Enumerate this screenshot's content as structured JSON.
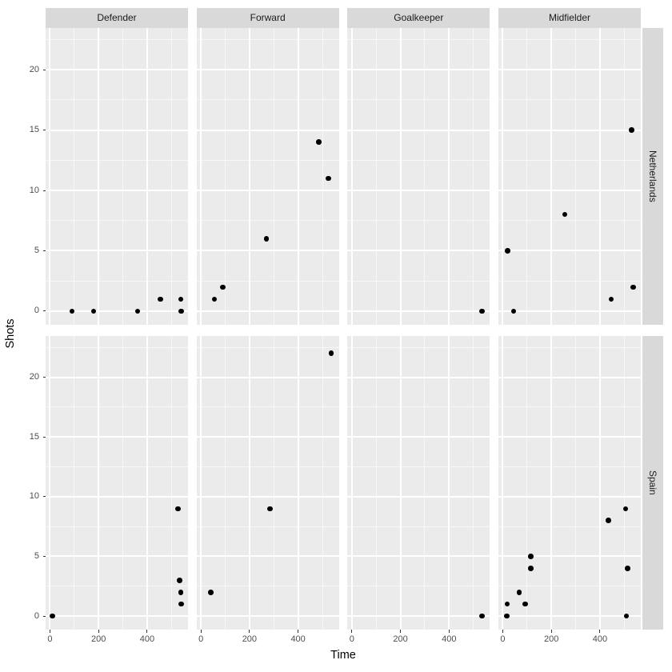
{
  "figure": {
    "colors": {
      "panel_bg": "#EBEBEB",
      "strip_bg": "#D9D9D9",
      "grid_major": "#FFFFFF",
      "grid_minor": "#F7F7F7",
      "point": "#000000",
      "tick_text": "#4D4D4D",
      "tick_mark": "#333333",
      "axis_title": "#000000"
    }
  },
  "chart_data": {
    "type": "scatter",
    "title": "",
    "xlabel": "Time",
    "ylabel": "Shots",
    "facet_cols": [
      "Defender",
      "Forward",
      "Goalkeeper",
      "Midfielder"
    ],
    "facet_rows": [
      "Netherlands",
      "Spain"
    ],
    "x_ticks": [
      0,
      200,
      400
    ],
    "x_minor": [
      100,
      300,
      500
    ],
    "y_ticks": [
      0,
      5,
      10,
      15,
      20
    ],
    "y_minor": [
      2.5,
      7.5,
      12.5,
      17.5,
      22.5
    ],
    "xlim": [
      -18,
      568
    ],
    "ylim": [
      -1.13,
      23.45
    ],
    "grid": true,
    "legend": "none",
    "points": {
      "Netherlands": {
        "Defender": [
          [
            90,
            0
          ],
          [
            180,
            0
          ],
          [
            360,
            0
          ],
          [
            455,
            1
          ],
          [
            538,
            1
          ],
          [
            540,
            0
          ]
        ],
        "Forward": [
          [
            55,
            1
          ],
          [
            90,
            2
          ],
          [
            270,
            6
          ],
          [
            485,
            14
          ],
          [
            524,
            11
          ]
        ],
        "Goalkeeper": [
          [
            535,
            0
          ]
        ],
        "Midfielder": [
          [
            20,
            5
          ],
          [
            45,
            0
          ],
          [
            255,
            8
          ],
          [
            446,
            1
          ],
          [
            530,
            15
          ],
          [
            537,
            2
          ]
        ]
      },
      "Spain": {
        "Defender": [
          [
            10,
            0
          ],
          [
            527,
            9
          ],
          [
            533,
            3
          ],
          [
            538,
            2
          ],
          [
            540,
            1
          ]
        ],
        "Forward": [
          [
            40,
            2
          ],
          [
            285,
            9
          ],
          [
            536,
            22
          ]
        ],
        "Goalkeeper": [
          [
            535,
            0
          ]
        ],
        "Midfielder": [
          [
            16,
            0
          ],
          [
            19,
            1
          ],
          [
            68,
            2
          ],
          [
            92,
            1
          ],
          [
            115,
            4
          ],
          [
            115,
            5
          ],
          [
            435,
            8
          ],
          [
            505,
            9
          ],
          [
            508,
            0
          ],
          [
            513,
            4
          ]
        ]
      }
    }
  }
}
